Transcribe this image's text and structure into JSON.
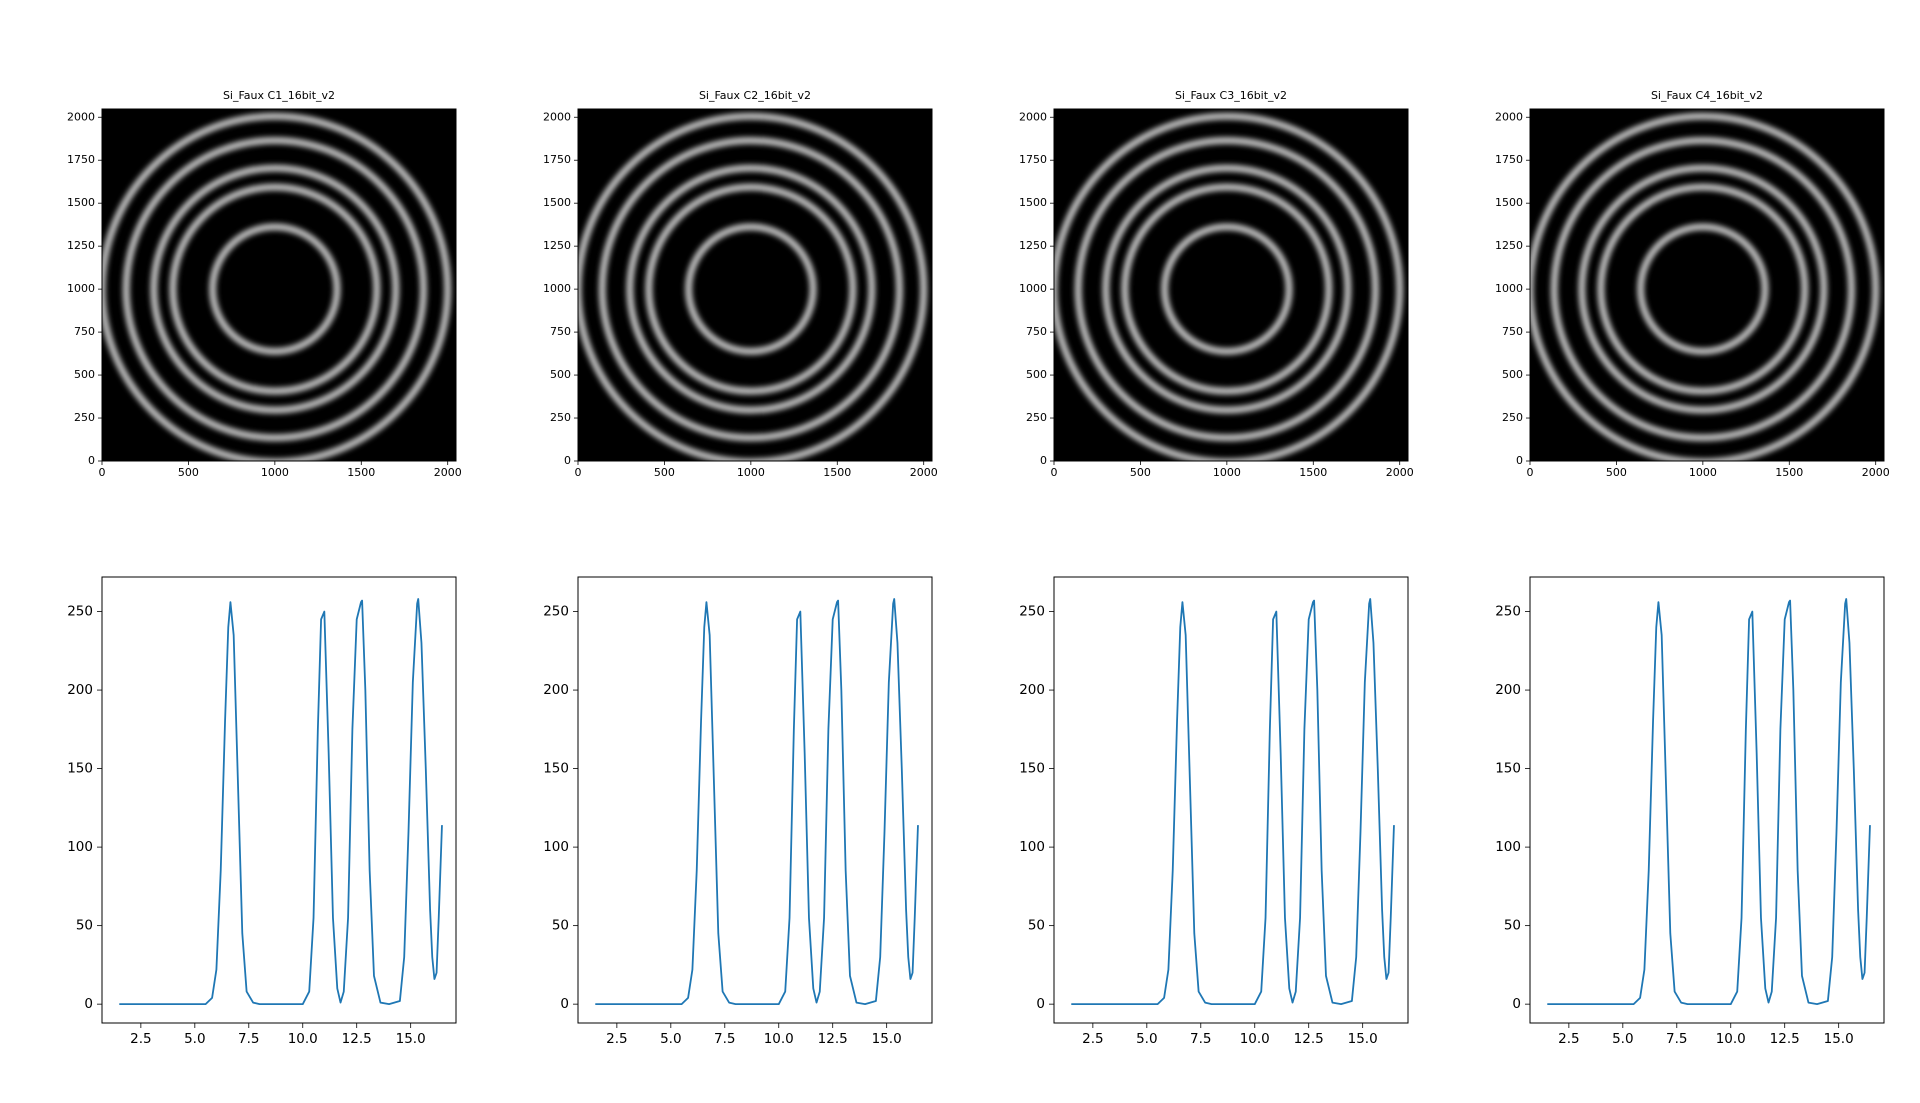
{
  "colors": {
    "line": "#1f77b4",
    "axis": "#000000",
    "background": "#ffffff",
    "ring": "#bfbfbf"
  },
  "chart_data": [
    {
      "type": "heatmap",
      "title": "Si_Faux C1_16bit_v2",
      "colormap": "gray",
      "xlim": [
        0,
        2048
      ],
      "ylim": [
        2048,
        0
      ],
      "x_ticks": [
        "0",
        "500",
        "1000",
        "1500",
        "2000"
      ],
      "x_tick_values": [
        0,
        500,
        1000,
        1500,
        2000
      ],
      "y_ticks": [
        "0",
        "250",
        "500",
        "750",
        "1000",
        "1250",
        "1500",
        "1750",
        "2000"
      ],
      "y_tick_values": [
        0,
        250,
        500,
        750,
        1000,
        1250,
        1500,
        1750,
        2000
      ],
      "center": [
        1000,
        1000
      ],
      "ring_radii": [
        360,
        590,
        700,
        860,
        1000
      ]
    },
    {
      "type": "heatmap",
      "title": "Si_Faux C2_16bit_v2",
      "colormap": "gray",
      "xlim": [
        0,
        2048
      ],
      "ylim": [
        2048,
        0
      ],
      "x_ticks": [
        "0",
        "500",
        "1000",
        "1500",
        "2000"
      ],
      "x_tick_values": [
        0,
        500,
        1000,
        1500,
        2000
      ],
      "y_ticks": [
        "0",
        "250",
        "500",
        "750",
        "1000",
        "1250",
        "1500",
        "1750",
        "2000"
      ],
      "y_tick_values": [
        0,
        250,
        500,
        750,
        1000,
        1250,
        1500,
        1750,
        2000
      ],
      "center": [
        1000,
        1000
      ],
      "ring_radii": [
        360,
        590,
        700,
        860,
        1000
      ]
    },
    {
      "type": "heatmap",
      "title": "Si_Faux C3_16bit_v2",
      "colormap": "gray",
      "xlim": [
        0,
        2048
      ],
      "ylim": [
        2048,
        0
      ],
      "x_ticks": [
        "0",
        "500",
        "1000",
        "1500",
        "2000"
      ],
      "x_tick_values": [
        0,
        500,
        1000,
        1500,
        2000
      ],
      "y_ticks": [
        "0",
        "250",
        "500",
        "750",
        "1000",
        "1250",
        "1500",
        "1750",
        "2000"
      ],
      "y_tick_values": [
        0,
        250,
        500,
        750,
        1000,
        1250,
        1500,
        1750,
        2000
      ],
      "center": [
        1000,
        1000
      ],
      "ring_radii": [
        360,
        590,
        700,
        860,
        1000
      ]
    },
    {
      "type": "heatmap",
      "title": "Si_Faux C4_16bit_v2",
      "colormap": "gray",
      "xlim": [
        0,
        2048
      ],
      "ylim": [
        2048,
        0
      ],
      "x_ticks": [
        "0",
        "500",
        "1000",
        "1500",
        "2000"
      ],
      "x_tick_values": [
        0,
        500,
        1000,
        1500,
        2000
      ],
      "y_ticks": [
        "0",
        "250",
        "500",
        "750",
        "1000",
        "1250",
        "1500",
        "1750",
        "2000"
      ],
      "y_tick_values": [
        0,
        250,
        500,
        750,
        1000,
        1250,
        1500,
        1750,
        2000
      ],
      "center": [
        1000,
        1000
      ],
      "ring_radii": [
        360,
        590,
        700,
        860,
        1000
      ]
    },
    {
      "type": "line",
      "xlim": [
        0.7,
        17.1
      ],
      "ylim": [
        -12,
        272
      ],
      "x_ticks": [
        "2.5",
        "5.0",
        "7.5",
        "10.0",
        "12.5",
        "15.0"
      ],
      "x_tick_values": [
        2.5,
        5.0,
        7.5,
        10.0,
        12.5,
        15.0
      ],
      "y_ticks": [
        "0",
        "50",
        "100",
        "150",
        "200",
        "250"
      ],
      "y_tick_values": [
        0,
        50,
        100,
        150,
        200,
        250
      ],
      "series": [
        {
          "x": [
            1.5,
            5.5,
            5.8,
            6.0,
            6.2,
            6.4,
            6.55,
            6.65,
            6.8,
            7.0,
            7.2,
            7.4,
            7.7,
            8.0,
            10.0,
            10.3,
            10.5,
            10.7,
            10.85,
            11.0,
            11.2,
            11.4,
            11.6,
            11.75,
            11.9,
            12.1,
            12.3,
            12.5,
            12.7,
            12.75,
            12.9,
            13.1,
            13.3,
            13.6,
            14.0,
            14.5,
            14.7,
            14.9,
            15.1,
            15.3,
            15.35,
            15.5,
            15.7,
            15.9,
            16.0,
            16.1,
            16.2,
            16.3,
            16.45
          ],
          "y": [
            0,
            0,
            4,
            22,
            85,
            180,
            240,
            256,
            235,
            140,
            45,
            8,
            1,
            0,
            0,
            8,
            55,
            175,
            245,
            250,
            160,
            55,
            10,
            1,
            8,
            55,
            175,
            245,
            256,
            257,
            200,
            85,
            18,
            1,
            0,
            2,
            30,
            110,
            205,
            255,
            258,
            230,
            150,
            60,
            30,
            16,
            20,
            55,
            114
          ]
        }
      ]
    },
    {
      "type": "line",
      "xlim": [
        0.7,
        17.1
      ],
      "ylim": [
        -12,
        272
      ],
      "x_ticks": [
        "2.5",
        "5.0",
        "7.5",
        "10.0",
        "12.5",
        "15.0"
      ],
      "x_tick_values": [
        2.5,
        5.0,
        7.5,
        10.0,
        12.5,
        15.0
      ],
      "y_ticks": [
        "0",
        "50",
        "100",
        "150",
        "200",
        "250"
      ],
      "y_tick_values": [
        0,
        50,
        100,
        150,
        200,
        250
      ],
      "series": [
        {
          "x": [
            1.5,
            5.5,
            5.8,
            6.0,
            6.2,
            6.4,
            6.55,
            6.65,
            6.8,
            7.0,
            7.2,
            7.4,
            7.7,
            8.0,
            10.0,
            10.3,
            10.5,
            10.7,
            10.85,
            11.0,
            11.2,
            11.4,
            11.6,
            11.75,
            11.9,
            12.1,
            12.3,
            12.5,
            12.7,
            12.75,
            12.9,
            13.1,
            13.3,
            13.6,
            14.0,
            14.5,
            14.7,
            14.9,
            15.1,
            15.3,
            15.35,
            15.5,
            15.7,
            15.9,
            16.0,
            16.1,
            16.2,
            16.3,
            16.45
          ],
          "y": [
            0,
            0,
            4,
            22,
            85,
            180,
            240,
            256,
            235,
            140,
            45,
            8,
            1,
            0,
            0,
            8,
            55,
            175,
            245,
            250,
            160,
            55,
            10,
            1,
            8,
            55,
            175,
            245,
            256,
            257,
            200,
            85,
            18,
            1,
            0,
            2,
            30,
            110,
            205,
            255,
            258,
            230,
            150,
            60,
            30,
            16,
            20,
            55,
            114
          ]
        }
      ]
    },
    {
      "type": "line",
      "xlim": [
        0.7,
        17.1
      ],
      "ylim": [
        -12,
        272
      ],
      "x_ticks": [
        "2.5",
        "5.0",
        "7.5",
        "10.0",
        "12.5",
        "15.0"
      ],
      "x_tick_values": [
        2.5,
        5.0,
        7.5,
        10.0,
        12.5,
        15.0
      ],
      "y_ticks": [
        "0",
        "50",
        "100",
        "150",
        "200",
        "250"
      ],
      "y_tick_values": [
        0,
        50,
        100,
        150,
        200,
        250
      ],
      "series": [
        {
          "x": [
            1.5,
            5.5,
            5.8,
            6.0,
            6.2,
            6.4,
            6.55,
            6.65,
            6.8,
            7.0,
            7.2,
            7.4,
            7.7,
            8.0,
            10.0,
            10.3,
            10.5,
            10.7,
            10.85,
            11.0,
            11.2,
            11.4,
            11.6,
            11.75,
            11.9,
            12.1,
            12.3,
            12.5,
            12.7,
            12.75,
            12.9,
            13.1,
            13.3,
            13.6,
            14.0,
            14.5,
            14.7,
            14.9,
            15.1,
            15.3,
            15.35,
            15.5,
            15.7,
            15.9,
            16.0,
            16.1,
            16.2,
            16.3,
            16.45
          ],
          "y": [
            0,
            0,
            4,
            22,
            85,
            180,
            240,
            256,
            235,
            140,
            45,
            8,
            1,
            0,
            0,
            8,
            55,
            175,
            245,
            250,
            160,
            55,
            10,
            1,
            8,
            55,
            175,
            245,
            256,
            257,
            200,
            85,
            18,
            1,
            0,
            2,
            30,
            110,
            205,
            255,
            258,
            230,
            150,
            60,
            30,
            16,
            20,
            55,
            114
          ]
        }
      ]
    },
    {
      "type": "line",
      "xlim": [
        0.7,
        17.1
      ],
      "ylim": [
        -12,
        272
      ],
      "x_ticks": [
        "2.5",
        "5.0",
        "7.5",
        "10.0",
        "12.5",
        "15.0"
      ],
      "x_tick_values": [
        2.5,
        5.0,
        7.5,
        10.0,
        12.5,
        15.0
      ],
      "y_ticks": [
        "0",
        "50",
        "100",
        "150",
        "200",
        "250"
      ],
      "y_tick_values": [
        0,
        50,
        100,
        150,
        200,
        250
      ],
      "series": [
        {
          "x": [
            1.5,
            5.5,
            5.8,
            6.0,
            6.2,
            6.4,
            6.55,
            6.65,
            6.8,
            7.0,
            7.2,
            7.4,
            7.7,
            8.0,
            10.0,
            10.3,
            10.5,
            10.7,
            10.85,
            11.0,
            11.2,
            11.4,
            11.6,
            11.75,
            11.9,
            12.1,
            12.3,
            12.5,
            12.7,
            12.75,
            12.9,
            13.1,
            13.3,
            13.6,
            14.0,
            14.5,
            14.7,
            14.9,
            15.1,
            15.3,
            15.35,
            15.5,
            15.7,
            15.9,
            16.0,
            16.1,
            16.2,
            16.3,
            16.45
          ],
          "y": [
            0,
            0,
            4,
            22,
            85,
            180,
            240,
            256,
            235,
            140,
            45,
            8,
            1,
            0,
            0,
            8,
            55,
            175,
            245,
            250,
            160,
            55,
            10,
            1,
            8,
            55,
            175,
            245,
            256,
            257,
            200,
            85,
            18,
            1,
            0,
            2,
            30,
            110,
            205,
            255,
            258,
            230,
            150,
            60,
            30,
            16,
            20,
            55,
            114
          ]
        }
      ]
    }
  ]
}
